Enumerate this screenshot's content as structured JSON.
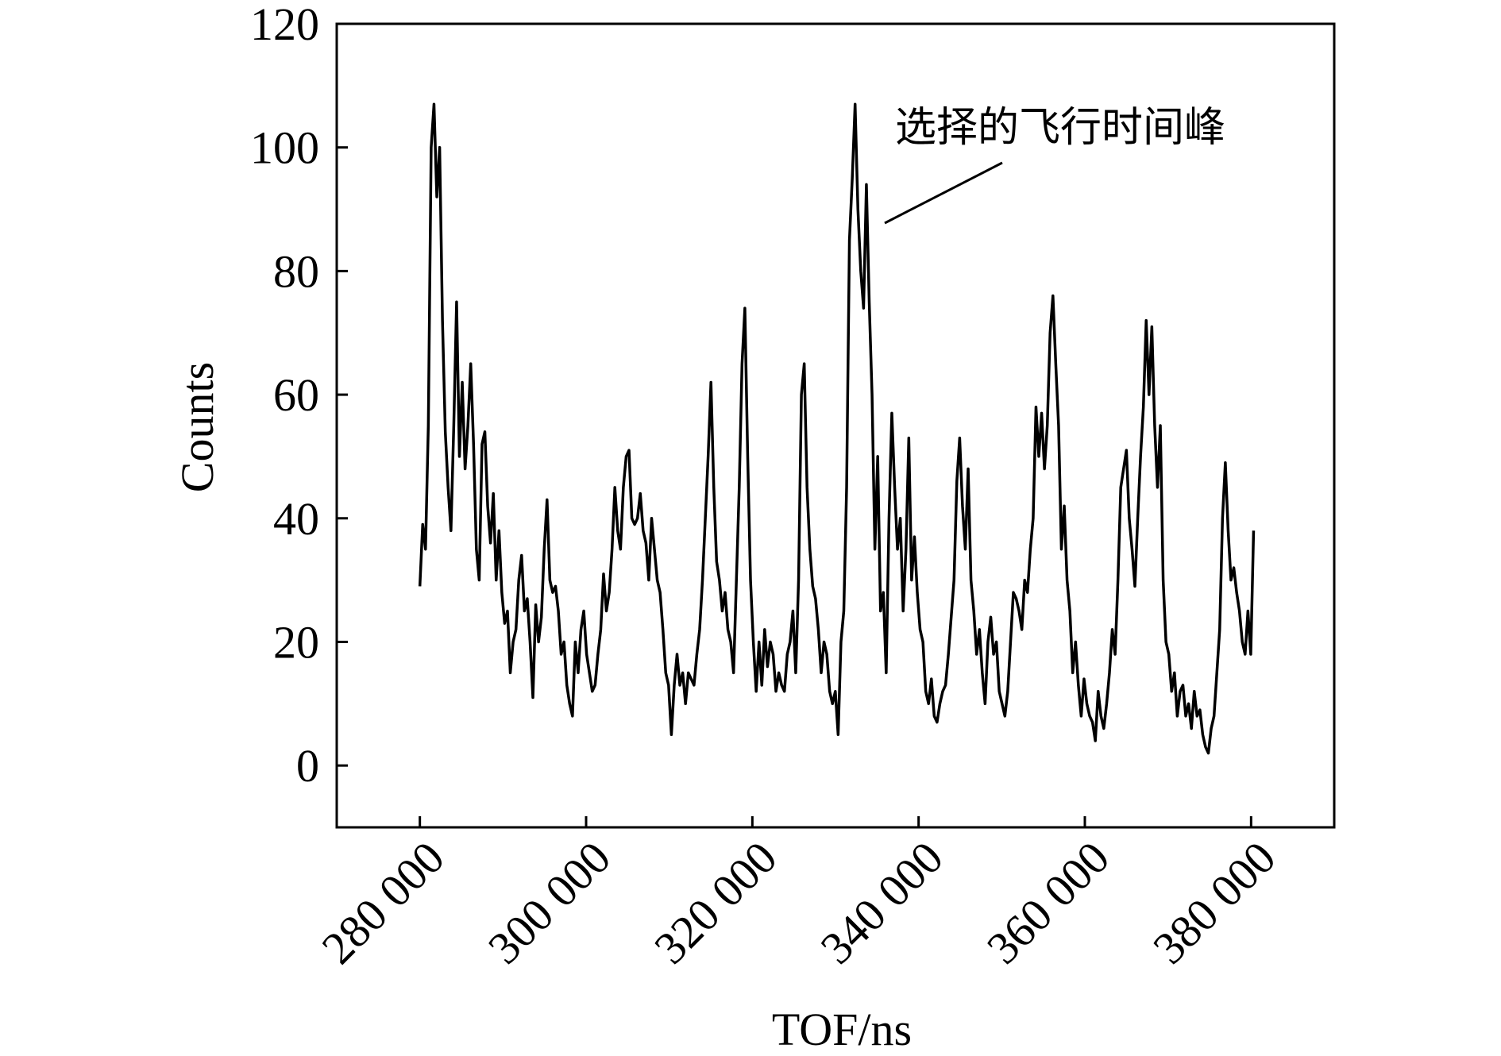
{
  "chart_data": {
    "type": "line",
    "xlabel": "TOF/ns",
    "ylabel": "Counts",
    "annotation": "选择的飞行时间峰",
    "xlim": [
      270000,
      390000
    ],
    "ylim": [
      -10,
      120
    ],
    "xticks": [
      {
        "value": 280000,
        "label": "280 000"
      },
      {
        "value": 300000,
        "label": "300 000"
      },
      {
        "value": 320000,
        "label": "320 000"
      },
      {
        "value": 340000,
        "label": "340 000"
      },
      {
        "value": 360000,
        "label": "360 000"
      },
      {
        "value": 380000,
        "label": "380 000"
      }
    ],
    "yticks": [
      0,
      20,
      40,
      60,
      80,
      100,
      120
    ],
    "series": [
      {
        "color": "#000000",
        "x": [
          280000,
          280340,
          280680,
          281020,
          281360,
          281700,
          282040,
          282380,
          282720,
          283060,
          283400,
          283740,
          284080,
          284420,
          284760,
          285100,
          285440,
          285780,
          286120,
          286460,
          286800,
          287140,
          287480,
          287820,
          288160,
          288500,
          288840,
          289180,
          289520,
          289860,
          290200,
          290540,
          290880,
          291220,
          291560,
          291900,
          292240,
          292580,
          292920,
          293260,
          293600,
          293940,
          294280,
          294620,
          294960,
          295300,
          295640,
          295980,
          296320,
          296660,
          297000,
          297340,
          297680,
          298020,
          298360,
          298700,
          299040,
          299380,
          299720,
          300060,
          300400,
          300740,
          301080,
          301420,
          301760,
          302100,
          302440,
          302780,
          303120,
          303460,
          303800,
          304140,
          304480,
          304820,
          305160,
          305500,
          305840,
          306180,
          306520,
          306860,
          307200,
          307540,
          307880,
          308220,
          308560,
          308900,
          309240,
          309580,
          309920,
          310260,
          310600,
          310940,
          311280,
          311620,
          311960,
          312300,
          312640,
          312980,
          313320,
          313660,
          314000,
          314340,
          314680,
          315020,
          315360,
          315700,
          316040,
          316380,
          316720,
          317060,
          317400,
          317740,
          318080,
          318420,
          318760,
          319100,
          319440,
          319780,
          320120,
          320460,
          320800,
          321140,
          321480,
          321820,
          322160,
          322500,
          322840,
          323180,
          323520,
          323860,
          324200,
          324540,
          324880,
          325220,
          325560,
          325900,
          326240,
          326580,
          326920,
          327260,
          327600,
          327940,
          328280,
          328620,
          328960,
          329300,
          329640,
          329980,
          330320,
          330660,
          331000,
          331340,
          331680,
          332020,
          332360,
          332700,
          333040,
          333380,
          333720,
          334060,
          334400,
          334740,
          335080,
          335420,
          335760,
          336100,
          336440,
          336780,
          337120,
          337460,
          337800,
          338140,
          338480,
          338820,
          339160,
          339500,
          339840,
          340180,
          340520,
          340860,
          341200,
          341540,
          341880,
          342220,
          342560,
          342900,
          343240,
          343580,
          343920,
          344260,
          344600,
          344940,
          345280,
          345620,
          345960,
          346300,
          346640,
          346980,
          347320,
          347660,
          348000,
          348340,
          348680,
          349020,
          349360,
          349700,
          350040,
          350380,
          350720,
          351060,
          351400,
          351740,
          352080,
          352420,
          352760,
          353100,
          353440,
          353780,
          354120,
          354460,
          354800,
          355140,
          355480,
          355820,
          356160,
          356500,
          356840,
          357180,
          357520,
          357860,
          358200,
          358540,
          358880,
          359220,
          359560,
          359900,
          360240,
          360580,
          360920,
          361260,
          361600,
          361940,
          362280,
          362620,
          362960,
          363300,
          363640,
          363980,
          364320,
          364660,
          365000,
          365340,
          365680,
          366020,
          366360,
          366700,
          367040,
          367380,
          367720,
          368060,
          368400,
          368740,
          369080,
          369420,
          369760,
          370100,
          370440,
          370780,
          371120,
          371460,
          371800,
          372140,
          372480,
          372820,
          373160,
          373500,
          373840,
          374180,
          374520,
          374860,
          375200,
          375540,
          375880,
          376220,
          376560,
          376900,
          377240,
          377580,
          377920,
          378260,
          378600,
          378940,
          379280,
          379620,
          379960,
          380300
        ],
        "values": [
          29,
          39,
          35,
          55,
          100,
          107,
          92,
          100,
          72,
          54,
          45,
          38,
          55,
          75,
          50,
          62,
          48,
          55,
          65,
          52,
          35,
          30,
          52,
          54,
          42,
          36,
          44,
          30,
          38,
          28,
          23,
          25,
          15,
          20,
          22,
          30,
          34,
          25,
          27,
          20,
          11,
          26,
          20,
          24,
          35,
          43,
          30,
          28,
          29,
          25,
          18,
          20,
          13,
          10,
          8,
          20,
          15,
          22,
          25,
          18,
          15,
          12,
          13,
          18,
          22,
          31,
          25,
          28,
          35,
          45,
          38,
          35,
          45,
          50,
          51,
          40,
          39,
          40,
          44,
          38,
          36,
          30,
          40,
          35,
          30,
          28,
          22,
          15,
          13,
          5,
          13,
          18,
          13,
          15,
          10,
          15,
          14,
          13,
          18,
          22,
          30,
          40,
          50,
          62,
          45,
          33,
          30,
          25,
          28,
          22,
          20,
          15,
          30,
          45,
          65,
          74,
          50,
          30,
          20,
          12,
          20,
          13,
          22,
          16,
          20,
          18,
          12,
          15,
          13,
          12,
          18,
          20,
          25,
          15,
          30,
          60,
          65,
          45,
          35,
          29,
          27,
          22,
          15,
          20,
          18,
          12,
          10,
          12,
          5,
          20,
          25,
          45,
          85,
          95,
          107,
          90,
          80,
          74,
          94,
          75,
          60,
          35,
          50,
          25,
          28,
          15,
          40,
          57,
          45,
          35,
          40,
          25,
          35,
          53,
          30,
          37,
          28,
          22,
          20,
          12,
          10,
          14,
          8,
          7,
          10,
          12,
          13,
          18,
          24,
          30,
          46,
          53,
          42,
          35,
          48,
          30,
          25,
          18,
          22,
          15,
          10,
          20,
          24,
          18,
          20,
          12,
          10,
          8,
          12,
          20,
          28,
          27,
          25,
          22,
          30,
          28,
          35,
          40,
          58,
          50,
          57,
          48,
          55,
          70,
          76,
          65,
          55,
          35,
          42,
          30,
          25,
          15,
          20,
          13,
          8,
          14,
          10,
          8,
          7,
          4,
          12,
          8,
          6,
          10,
          15,
          22,
          18,
          30,
          45,
          48,
          51,
          40,
          35,
          29,
          40,
          50,
          58,
          72,
          60,
          71,
          55,
          45,
          55,
          30,
          20,
          18,
          12,
          15,
          8,
          12,
          13,
          8,
          10,
          6,
          12,
          8,
          9,
          5,
          3,
          2,
          6,
          8,
          15,
          22,
          40,
          49,
          38,
          30,
          32,
          28,
          25,
          20,
          18,
          25,
          18,
          38
        ]
      }
    ]
  }
}
